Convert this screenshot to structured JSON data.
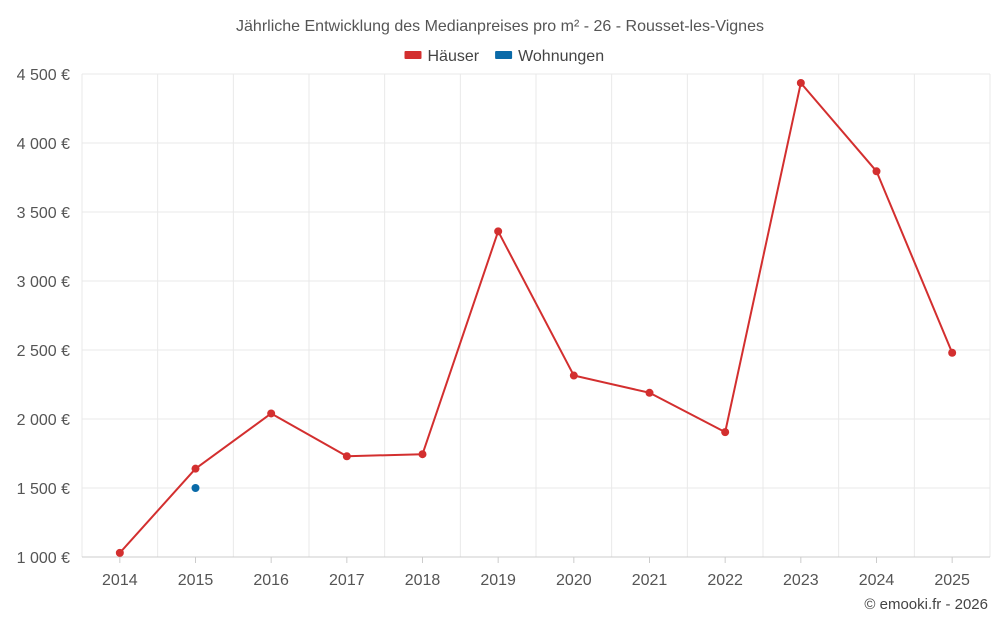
{
  "chart_data": {
    "type": "line",
    "title": "Jährliche Entwicklung des Medianpreises pro m² - 26 - Rousset-les-Vignes",
    "xlabel": "",
    "ylabel": "",
    "categories": [
      "2014",
      "2015",
      "2016",
      "2017",
      "2018",
      "2019",
      "2020",
      "2021",
      "2022",
      "2023",
      "2024",
      "2025"
    ],
    "ylim": [
      1000,
      4500
    ],
    "yticks": [
      1000,
      1500,
      2000,
      2500,
      3000,
      3500,
      4000,
      4500
    ],
    "ytick_labels": [
      "1 000 €",
      "1 500 €",
      "2 000 €",
      "2 500 €",
      "3 000 €",
      "3 500 €",
      "4 000 €",
      "4 500 €"
    ],
    "grid": true,
    "legend_position": "top-center",
    "series": [
      {
        "name": "Häuser",
        "color": "#d32f2f",
        "values": [
          1030,
          1640,
          2040,
          1730,
          1745,
          3360,
          2315,
          2190,
          1905,
          4435,
          3795,
          2480
        ]
      },
      {
        "name": "Wohnungen",
        "color": "#0a6aa8",
        "values": [
          null,
          1500,
          null,
          null,
          null,
          null,
          null,
          null,
          null,
          null,
          null,
          null
        ]
      }
    ]
  },
  "credit": "© emooki.fr - 2026"
}
